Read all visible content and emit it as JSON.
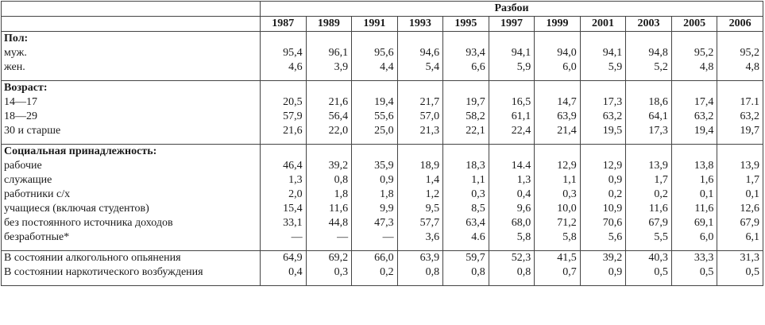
{
  "header": {
    "title": "Разбои",
    "years": [
      "1987",
      "1989",
      "1991",
      "1993",
      "1995",
      "1997",
      "1999",
      "2001",
      "2003",
      "2005",
      "2006"
    ]
  },
  "sections": [
    {
      "title": "Пол:",
      "rows": [
        {
          "label": "муж.",
          "values": [
            "95,4",
            "96,1",
            "95,6",
            "94,6",
            "93,4",
            "94,1",
            "94,0",
            "94,1",
            "94,8",
            "95,2",
            "95,2"
          ]
        },
        {
          "label": "жен.",
          "values": [
            "4,6",
            "3,9",
            "4,4",
            "5,4",
            "6,6",
            "5,9",
            "6,0",
            "5,9",
            "5,2",
            "4,8",
            "4,8"
          ]
        }
      ]
    },
    {
      "title": "Возраст:",
      "rows": [
        {
          "label": "14—17",
          "values": [
            "20,5",
            "21,6",
            "19,4",
            "21,7",
            "19,7",
            "16,5",
            "14,7",
            "17,3",
            "18,6",
            "17,4",
            "17.1"
          ]
        },
        {
          "label": "18—29",
          "values": [
            "57,9",
            "56,4",
            "55,6",
            "57,0",
            "58,2",
            "61,1",
            "63,9",
            "63,2",
            "64,1",
            "63,2",
            "63,2"
          ]
        },
        {
          "label": "30 и старше",
          "values": [
            "21,6",
            "22,0",
            "25,0",
            "21,3",
            "22,1",
            "22,4",
            "21,4",
            "19,5",
            "17,3",
            "19,4",
            "19,7"
          ]
        }
      ]
    },
    {
      "title": "Социальная принадлежность:",
      "rows": [
        {
          "label": "рабочие",
          "values": [
            "46,4",
            "39,2",
            "35,9",
            "18,9",
            "18,3",
            "14.4",
            "12,9",
            "12,9",
            "13,9",
            "13,8",
            "13,9"
          ]
        },
        {
          "label": "служащие",
          "values": [
            "1,3",
            "0,8",
            "0,9",
            "1,4",
            "1,1",
            "1,3",
            "1,1",
            "0,9",
            "1,7",
            "1,6",
            "1,7"
          ]
        },
        {
          "label": "работники с/х",
          "values": [
            "2,0",
            "1,8",
            "1,8",
            "1,2",
            "0,3",
            "0,4",
            "0,3",
            "0,2",
            "0,2",
            "0,1",
            "0,1"
          ]
        },
        {
          "label": "учащиеся (включая студентов)",
          "values": [
            "15,4",
            "11,6",
            "9,9",
            "9,5",
            "8,5",
            "9,6",
            "10,0",
            "10,9",
            "11,6",
            "11,6",
            "12,6"
          ]
        },
        {
          "label": "без постоянного источника доходов",
          "values": [
            "33,1",
            "44,8",
            "47,3",
            "57,7",
            "63,4",
            "68,0",
            "71,2",
            "70,6",
            "67,9",
            "69,1",
            "67,9"
          ]
        },
        {
          "label": "безработные*",
          "values": [
            "—",
            "—",
            "—",
            "3,6",
            "4.6",
            "5,8",
            "5,8",
            "5,6",
            "5,5",
            "6,0",
            "6,1"
          ]
        }
      ]
    },
    {
      "title": "",
      "rows": [
        {
          "label": "В состоянии алкогольного опьянения",
          "values": [
            "64,9",
            "69,2",
            "66,0",
            "63,9",
            "59,7",
            "52,3",
            "41,5",
            "39,2",
            "40,3",
            "33,3",
            "31,3"
          ]
        },
        {
          "label": "В состоянии наркотического возбуждения",
          "values": [
            "0,4",
            "0,3",
            "0,2",
            "0,8",
            "0,8",
            "0,8",
            "0,7",
            "0,9",
            "0,5",
            "0,5",
            "0,5"
          ]
        }
      ]
    }
  ]
}
